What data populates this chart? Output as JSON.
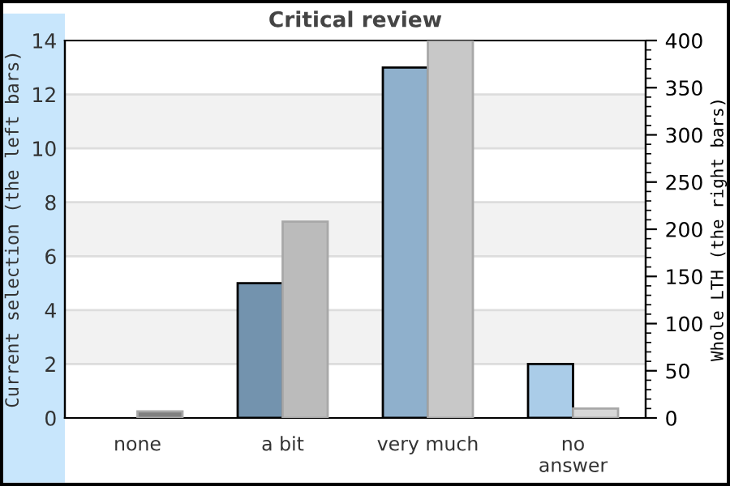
{
  "chart_data": {
    "type": "bar",
    "title": "Critical review",
    "categories": [
      "none",
      "a bit",
      "very much",
      "no\nanswer"
    ],
    "ylabel": "Current selection (the left bars)",
    "y2label": "Whole LTH (the right bars)",
    "series": [
      {
        "colors": [
          "#7393ae",
          "#7393ae",
          "#8fb0cc",
          "#aacce8"
        ],
        "values": [
          0,
          5,
          13,
          2
        ]
      },
      {
        "axis": "y2",
        "colors": [
          "#808080",
          "#bbbbbb",
          "#c8c8c8",
          "#d8d8d8"
        ],
        "values": [
          7,
          208,
          400,
          10
        ]
      }
    ],
    "ylim": [
      0,
      14
    ],
    "yticks": [
      0,
      2,
      4,
      6,
      8,
      10,
      12,
      14
    ],
    "y2lim": [
      0,
      400
    ],
    "y2ticks": [
      0,
      50,
      100,
      150,
      200,
      250,
      300,
      350,
      400
    ],
    "grid": "y",
    "legend": false
  }
}
